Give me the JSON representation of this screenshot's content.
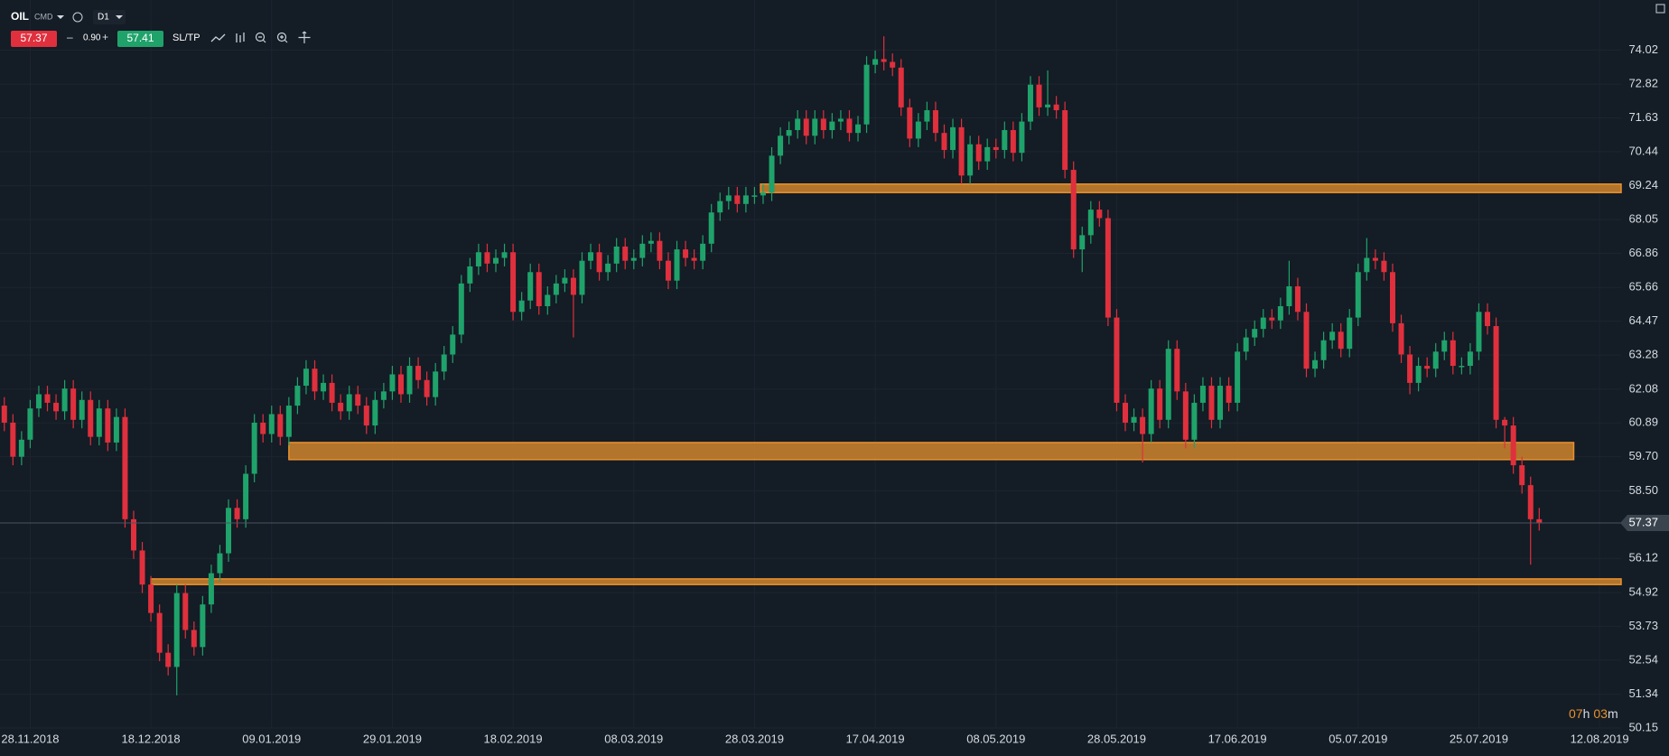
{
  "toolbar": {
    "symbol": "OIL",
    "market": "CMD",
    "timeframe": "D1",
    "sell": "57.37",
    "minus": "–",
    "volume": "0.90",
    "plus": "+",
    "buy": "57.41",
    "sltp": "SL/TP"
  },
  "timer": [
    "07",
    "h",
    "03",
    "m"
  ],
  "chart_data": {
    "type": "candlestick",
    "up_color": "#1fa36b",
    "down_color": "#e0303d",
    "zone_color": "#e8912e",
    "grid": true,
    "xlim": [
      -0.5,
      187.5
    ],
    "xticks": [
      {
        "value": 3,
        "label": "28.11.2018"
      },
      {
        "value": 17,
        "label": "18.12.2018"
      },
      {
        "value": 31,
        "label": "09.01.2019"
      },
      {
        "value": 45,
        "label": "29.01.2019"
      },
      {
        "value": 59,
        "label": "18.02.2019"
      },
      {
        "value": 73,
        "label": "08.03.2019"
      },
      {
        "value": 87,
        "label": "28.03.2019"
      },
      {
        "value": 101,
        "label": "17.04.2019"
      },
      {
        "value": 115,
        "label": "08.05.2019"
      },
      {
        "value": 129,
        "label": "28.05.2019"
      },
      {
        "value": 143,
        "label": "17.06.2019"
      },
      {
        "value": 157,
        "label": "05.07.2019"
      },
      {
        "value": 171,
        "label": "25.07.2019"
      },
      {
        "value": 185,
        "label": "12.08.2019"
      }
    ],
    "ylim": [
      50.15,
      75.78
    ],
    "yticks": [
      74.02,
      72.82,
      71.63,
      70.44,
      69.24,
      68.05,
      66.86,
      65.66,
      64.47,
      63.28,
      62.08,
      60.89,
      {
        "value": 59.7,
        "label": "59.70"
      },
      {
        "value": 58.5,
        "label": "58.50"
      },
      56.12,
      54.92,
      53.73,
      52.54,
      51.34,
      50.15
    ],
    "last_price": 57.37,
    "zones": [
      {
        "low": 69.0,
        "high": 69.3,
        "from": 87.7,
        "to": 187.5
      },
      {
        "low": 59.6,
        "high": 60.2,
        "from": 33,
        "to": 182
      },
      {
        "low": 55.2,
        "high": 55.4,
        "from": 17,
        "to": 187.5
      }
    ],
    "open": [
      61.5,
      60.9,
      59.7,
      60.3,
      61.4,
      61.9,
      61.6,
      61.3,
      62.1,
      61.0,
      61.7,
      60.4,
      61.4,
      60.2,
      61.1,
      57.5,
      56.4,
      55.2,
      54.2,
      52.8,
      52.3,
      54.9,
      53.6,
      53.0,
      54.5,
      55.6,
      56.3,
      57.9,
      57.5,
      59.1,
      60.9,
      60.5,
      61.2,
      60.4,
      61.5,
      62.2,
      62.8,
      62.0,
      62.3,
      61.6,
      61.3,
      61.9,
      61.5,
      60.8,
      61.7,
      62.0,
      62.6,
      61.9,
      62.9,
      62.4,
      61.8,
      62.7,
      63.3,
      64.0,
      65.8,
      66.4,
      66.9,
      66.5,
      66.7,
      66.9,
      64.8,
      65.2,
      66.2,
      65.0,
      65.4,
      65.8,
      66.0,
      65.4,
      66.6,
      66.9,
      66.2,
      66.5,
      67.1,
      66.6,
      66.7,
      67.2,
      67.3,
      66.6,
      65.9,
      67.0,
      66.7,
      66.6,
      67.2,
      68.3,
      68.7,
      68.9,
      68.6,
      68.9,
      68.9,
      69.0,
      70.3,
      71.0,
      71.2,
      71.6,
      71.0,
      71.6,
      71.2,
      71.5,
      71.6,
      71.1,
      71.4,
      73.5,
      73.7,
      73.6,
      73.4,
      72.0,
      70.9,
      71.5,
      71.9,
      71.1,
      70.5,
      71.3,
      69.6,
      70.7,
      70.1,
      70.6,
      70.5,
      71.2,
      70.4,
      71.5,
      72.8,
      72.0,
      72.1,
      71.9,
      69.8,
      67.0,
      67.5,
      68.4,
      68.1,
      64.6,
      61.6,
      60.9,
      61.1,
      60.5,
      62.1,
      61.0,
      63.5,
      62.0,
      60.3,
      61.6,
      62.2,
      61.0,
      62.2,
      61.6,
      63.4,
      63.9,
      64.2,
      64.6,
      64.5,
      65.0,
      65.7,
      64.8,
      62.8,
      63.1,
      63.8,
      64.1,
      63.5,
      64.6,
      66.2,
      66.7,
      66.6,
      66.2,
      64.4,
      63.3,
      62.3,
      62.9,
      62.8,
      63.4,
      63.8,
      62.9,
      62.9,
      63.4,
      64.8,
      64.3,
      61.0,
      60.8,
      59.4,
      58.7,
      57.5
    ],
    "high": [
      61.8,
      61.2,
      60.6,
      61.7,
      62.2,
      62.2,
      61.9,
      62.4,
      62.4,
      62.0,
      62.0,
      61.7,
      61.7,
      61.4,
      61.4,
      57.8,
      56.7,
      55.5,
      54.5,
      53.1,
      55.2,
      55.2,
      53.9,
      54.8,
      55.9,
      56.6,
      58.2,
      58.2,
      59.4,
      61.2,
      61.2,
      61.5,
      61.5,
      61.8,
      62.5,
      63.1,
      63.1,
      62.6,
      62.6,
      61.9,
      62.2,
      62.2,
      61.8,
      62.0,
      62.3,
      62.9,
      62.9,
      63.2,
      63.2,
      62.7,
      63.0,
      63.6,
      64.3,
      66.1,
      66.7,
      67.2,
      67.2,
      67.0,
      67.2,
      67.2,
      65.5,
      66.5,
      66.5,
      65.7,
      66.1,
      66.3,
      66.3,
      66.9,
      67.2,
      67.2,
      66.8,
      67.4,
      67.4,
      67.0,
      67.5,
      67.6,
      67.6,
      66.9,
      67.3,
      67.3,
      67.0,
      67.5,
      68.6,
      69.0,
      69.2,
      69.2,
      69.2,
      69.2,
      69.3,
      70.6,
      71.3,
      71.5,
      71.9,
      71.9,
      71.9,
      71.9,
      71.8,
      71.9,
      71.9,
      71.7,
      73.8,
      74.0,
      74.5,
      73.9,
      73.7,
      72.3,
      71.8,
      72.2,
      72.2,
      71.4,
      71.6,
      71.6,
      71.0,
      71.0,
      70.9,
      70.9,
      71.5,
      71.5,
      71.8,
      73.1,
      73.1,
      73.3,
      72.4,
      72.2,
      70.1,
      67.8,
      68.7,
      68.7,
      68.4,
      64.9,
      61.9,
      61.4,
      61.4,
      62.4,
      62.4,
      63.8,
      63.8,
      62.3,
      61.9,
      62.5,
      62.5,
      62.5,
      62.5,
      63.7,
      64.2,
      64.5,
      64.9,
      64.9,
      65.3,
      66.6,
      66.0,
      65.1,
      63.4,
      64.1,
      64.4,
      64.4,
      64.9,
      66.5,
      67.4,
      67.0,
      66.9,
      66.5,
      64.7,
      63.6,
      63.2,
      63.2,
      63.7,
      64.1,
      64.1,
      63.2,
      63.7,
      65.1,
      65.1,
      64.6,
      61.1,
      61.1,
      59.7,
      59.0,
      57.9
    ],
    "low": [
      60.6,
      59.4,
      59.4,
      60.0,
      61.1,
      61.3,
      61.0,
      61.0,
      60.7,
      60.7,
      60.1,
      60.1,
      59.9,
      59.9,
      57.2,
      56.1,
      54.9,
      53.9,
      52.5,
      52.0,
      51.3,
      53.3,
      52.7,
      52.7,
      54.2,
      55.3,
      56.0,
      57.2,
      57.2,
      58.8,
      60.2,
      60.2,
      60.1,
      60.1,
      61.2,
      61.9,
      61.7,
      61.7,
      61.3,
      61.0,
      61.0,
      61.2,
      60.5,
      60.5,
      61.4,
      61.7,
      61.6,
      61.6,
      62.1,
      61.5,
      61.5,
      62.4,
      63.0,
      63.7,
      65.5,
      66.1,
      66.2,
      66.2,
      66.4,
      64.5,
      64.5,
      64.9,
      64.7,
      64.7,
      65.1,
      65.5,
      63.9,
      65.1,
      66.3,
      65.9,
      65.9,
      66.2,
      66.3,
      66.3,
      66.4,
      66.9,
      66.3,
      65.6,
      65.6,
      66.4,
      66.3,
      66.3,
      66.9,
      68.0,
      68.4,
      68.3,
      68.3,
      68.6,
      68.6,
      68.7,
      70.0,
      70.7,
      70.9,
      70.7,
      70.7,
      70.9,
      70.9,
      71.2,
      70.8,
      70.8,
      71.1,
      73.2,
      73.3,
      73.1,
      71.7,
      70.6,
      70.6,
      71.2,
      70.8,
      70.2,
      70.2,
      69.3,
      69.3,
      69.8,
      69.8,
      70.2,
      70.2,
      70.1,
      70.1,
      71.2,
      71.7,
      71.7,
      71.6,
      69.5,
      66.7,
      66.2,
      67.2,
      67.8,
      64.3,
      61.3,
      60.6,
      60.6,
      59.5,
      60.2,
      60.7,
      60.7,
      61.7,
      60.0,
      60.0,
      61.3,
      60.7,
      60.7,
      61.3,
      61.3,
      63.1,
      63.6,
      63.9,
      64.2,
      64.2,
      64.7,
      64.5,
      62.5,
      62.5,
      62.8,
      63.5,
      63.2,
      63.2,
      64.3,
      65.9,
      66.3,
      65.9,
      64.1,
      63.0,
      61.9,
      62.0,
      62.5,
      62.5,
      63.1,
      62.6,
      62.6,
      62.6,
      63.1,
      64.0,
      60.7,
      60.0,
      59.1,
      58.4,
      55.9,
      57.1
    ],
    "close": [
      60.9,
      59.7,
      60.3,
      61.4,
      61.9,
      61.6,
      61.3,
      62.1,
      61.0,
      61.7,
      60.4,
      61.4,
      60.2,
      61.1,
      57.5,
      56.4,
      55.2,
      54.2,
      52.8,
      52.3,
      54.9,
      53.6,
      53.0,
      54.5,
      55.6,
      56.3,
      57.9,
      57.5,
      59.1,
      60.9,
      60.5,
      61.2,
      60.4,
      61.5,
      62.2,
      62.8,
      62.0,
      62.3,
      61.6,
      61.3,
      61.9,
      61.5,
      60.8,
      61.7,
      62.0,
      62.6,
      61.9,
      62.9,
      62.4,
      61.8,
      62.7,
      63.3,
      64.0,
      65.8,
      66.4,
      66.9,
      66.5,
      66.7,
      66.9,
      64.8,
      65.2,
      66.2,
      65.0,
      65.4,
      65.8,
      66.0,
      65.4,
      66.6,
      66.9,
      66.2,
      66.5,
      67.1,
      66.6,
      66.7,
      67.2,
      67.3,
      66.6,
      65.9,
      67.0,
      66.7,
      66.6,
      67.2,
      68.3,
      68.7,
      68.9,
      68.6,
      68.9,
      68.9,
      69.0,
      70.3,
      71.0,
      71.2,
      71.6,
      71.0,
      71.6,
      71.2,
      71.5,
      71.6,
      71.1,
      71.4,
      73.5,
      73.7,
      73.6,
      73.4,
      72.0,
      70.9,
      71.5,
      71.9,
      71.1,
      70.5,
      71.3,
      69.6,
      70.7,
      70.1,
      70.6,
      70.5,
      71.2,
      70.4,
      71.5,
      72.8,
      72.0,
      72.1,
      71.9,
      69.8,
      67.0,
      67.5,
      68.4,
      68.1,
      64.6,
      61.6,
      60.9,
      61.1,
      60.5,
      62.1,
      61.0,
      63.5,
      62.0,
      60.3,
      61.6,
      62.2,
      61.0,
      62.2,
      61.6,
      63.4,
      63.9,
      64.2,
      64.6,
      64.5,
      65.0,
      65.7,
      64.8,
      62.8,
      63.1,
      63.8,
      64.1,
      63.5,
      64.6,
      66.2,
      66.7,
      66.6,
      66.2,
      64.4,
      63.3,
      62.3,
      62.9,
      62.8,
      63.4,
      63.8,
      62.9,
      62.9,
      63.4,
      64.8,
      64.3,
      61.0,
      60.8,
      59.4,
      58.7,
      57.5,
      57.37
    ]
  }
}
